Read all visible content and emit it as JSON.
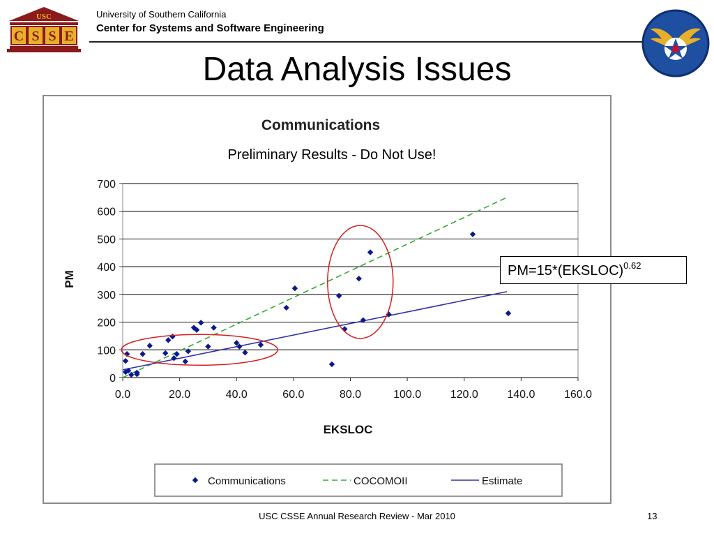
{
  "header": {
    "university": "University of Southern California",
    "center": "Center for Systems and Software Engineering",
    "logo_left": {
      "top_text": "USC",
      "letters": [
        "C",
        "S",
        "S",
        "E"
      ],
      "colors": {
        "maroon": "#8B1A1A",
        "gold": "#E8B02A"
      }
    },
    "logo_right": {
      "icon": "air-force-star-wings-icon",
      "colors": {
        "blue": "#1E4FA0",
        "gold": "#E8B02A",
        "red": "#C8102E"
      }
    }
  },
  "slide": {
    "title": "Data Analysis Issues",
    "footer": "USC CSSE Annual Research Review - Mar 2010",
    "page_number": "13"
  },
  "annotation": {
    "warning": "Preliminary Results - Do Not Use!",
    "formula_base": "PM=15*(EKSLOC)",
    "formula_exponent": "0.62",
    "highlight_color": "#D42020"
  },
  "chart_data": {
    "type": "scatter",
    "title": "Communications",
    "xlabel": "EKSLOC",
    "ylabel": "PM",
    "xlim": [
      0,
      160
    ],
    "ylim": [
      0,
      700
    ],
    "x_ticks": [
      "0.0",
      "20.0",
      "40.0",
      "60.0",
      "80.0",
      "100.0",
      "120.0",
      "140.0",
      "160.0"
    ],
    "y_ticks": [
      "0",
      "100",
      "200",
      "300",
      "400",
      "500",
      "600",
      "700"
    ],
    "grid": "horizontal",
    "legend_position": "bottom",
    "series": [
      {
        "name": "Communications",
        "kind": "points",
        "color": "#0A1A8C",
        "points": [
          [
            1,
            60
          ],
          [
            1.5,
            85
          ],
          [
            1,
            20
          ],
          [
            2,
            25
          ],
          [
            3,
            10
          ],
          [
            5,
            12
          ],
          [
            5,
            18
          ],
          [
            7,
            85
          ],
          [
            9.5,
            115
          ],
          [
            15,
            88
          ],
          [
            16,
            135
          ],
          [
            17.5,
            148
          ],
          [
            18,
            70
          ],
          [
            19,
            85
          ],
          [
            22,
            58
          ],
          [
            23,
            95
          ],
          [
            25,
            180
          ],
          [
            26,
            172
          ],
          [
            27.5,
            198
          ],
          [
            30,
            112
          ],
          [
            32,
            180
          ],
          [
            40,
            125
          ],
          [
            41,
            112
          ],
          [
            43,
            90
          ],
          [
            48.5,
            118
          ],
          [
            57.5,
            252
          ],
          [
            60.5,
            322
          ],
          [
            73.5,
            48
          ],
          [
            76,
            295
          ],
          [
            78,
            175
          ],
          [
            83,
            357
          ],
          [
            84.5,
            207
          ],
          [
            87,
            452
          ],
          [
            93.5,
            228
          ],
          [
            123,
            517
          ],
          [
            135.5,
            232
          ]
        ]
      },
      {
        "name": "COCOMOII",
        "kind": "dashed-line",
        "color": "#33AA33",
        "points": [
          [
            0,
            0
          ],
          [
            135,
            650
          ]
        ]
      },
      {
        "name": "Estimate",
        "kind": "line",
        "color": "#3333AA",
        "points": [
          [
            0,
            28
          ],
          [
            135,
            310
          ]
        ]
      }
    ]
  }
}
